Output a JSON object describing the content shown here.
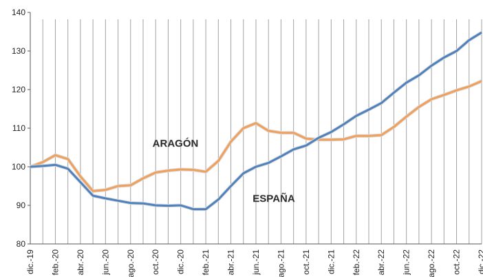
{
  "chart_data": {
    "type": "line",
    "categories": [
      "dic.-19",
      null,
      "feb.-20",
      null,
      "abr.-20",
      null,
      "jun.-20",
      null,
      "ago.-20",
      null,
      "oct.-20",
      null,
      "dic.-20",
      null,
      "feb.-21",
      null,
      "abr.-21",
      null,
      "jun.-21",
      null,
      "ago.-21",
      null,
      "oct.-21",
      null,
      "dic.-21",
      null,
      "feb.-22",
      null,
      "abr.-22",
      null,
      "jun.-22",
      null,
      "ago.-22",
      null,
      "oct.-22",
      null,
      "dic.-22"
    ],
    "series": [
      {
        "name": "ARAGÓN",
        "color": "#f0a05a",
        "values": [
          100,
          101.2,
          103,
          102,
          97.5,
          93.7,
          94,
          95,
          95.2,
          97,
          98.5,
          99,
          99.3,
          99.2,
          98.7,
          101.5,
          106.5,
          110,
          111.3,
          109.3,
          108.8,
          108.8,
          107.3,
          107,
          107,
          107.1,
          108,
          108,
          108.2,
          110.3,
          113,
          115.5,
          117.5,
          118.6,
          119.8,
          120.8,
          122.2
        ]
      },
      {
        "name": "ESPAÑA",
        "color": "#4f81bd",
        "values": [
          100,
          100.2,
          100.5,
          99.5,
          96,
          92.5,
          91.8,
          91.2,
          90.6,
          90.5,
          90,
          89.9,
          90,
          89,
          89,
          91.5,
          95,
          98.3,
          100,
          101,
          102.7,
          104.5,
          105.5,
          107.5,
          109,
          111,
          113.2,
          114.8,
          116.5,
          119.2,
          121.8,
          123.7,
          126.2,
          128.3,
          130,
          132.8,
          134.8
        ]
      }
    ],
    "ylim": [
      80,
      140
    ],
    "yticks": [
      80,
      90,
      100,
      110,
      120,
      130,
      140
    ],
    "grid": true
  }
}
